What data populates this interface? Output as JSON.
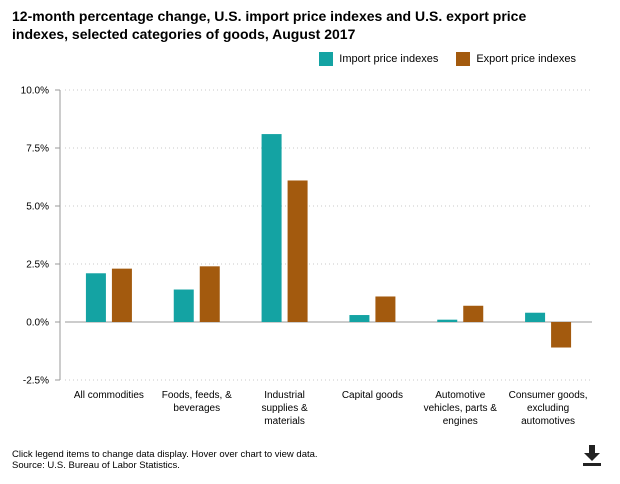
{
  "title": "12-month percentage change, U.S. import price indexes and U.S. export price indexes, selected categories of goods, August 2017",
  "colors": {
    "import": "#14A3A3",
    "export": "#A35A0E",
    "grid": "#c8c8c8",
    "axis": "#999999"
  },
  "legend": {
    "import_label": "Import price indexes",
    "export_label": "Export price indexes"
  },
  "footer": {
    "note": "Click legend items to change data display. Hover over chart to view data.",
    "source": "Source: U.S. Bureau of Labor Statistics."
  },
  "icons": {
    "download": "download-icon"
  },
  "chart_data": {
    "type": "bar",
    "title": "12-month percentage change, U.S. import price indexes and U.S. export price indexes, selected categories of goods, August 2017",
    "categories": [
      [
        "All commodities"
      ],
      [
        "Foods, feeds, &",
        "beverages"
      ],
      [
        "Industrial",
        "supplies &",
        "materials"
      ],
      [
        "Capital goods"
      ],
      [
        "Automotive",
        "vehicles, parts &",
        "engines"
      ],
      [
        "Consumer goods,",
        "excluding",
        "automotives"
      ]
    ],
    "series": [
      {
        "name": "Import price indexes",
        "values": [
          2.1,
          1.4,
          8.1,
          0.3,
          0.1,
          0.4
        ]
      },
      {
        "name": "Export price indexes",
        "values": [
          2.3,
          2.4,
          6.1,
          1.1,
          0.7,
          -1.1
        ]
      }
    ],
    "ylim": [
      -2.5,
      10.0
    ],
    "yticks": [
      10.0,
      7.5,
      5.0,
      2.5,
      0.0,
      -2.5
    ],
    "ytick_labels": [
      "10.0%",
      "7.5%",
      "5.0%",
      "2.5%",
      "0.0%",
      "-2.5%"
    ],
    "xlabel": "",
    "ylabel": "",
    "grid": true
  }
}
